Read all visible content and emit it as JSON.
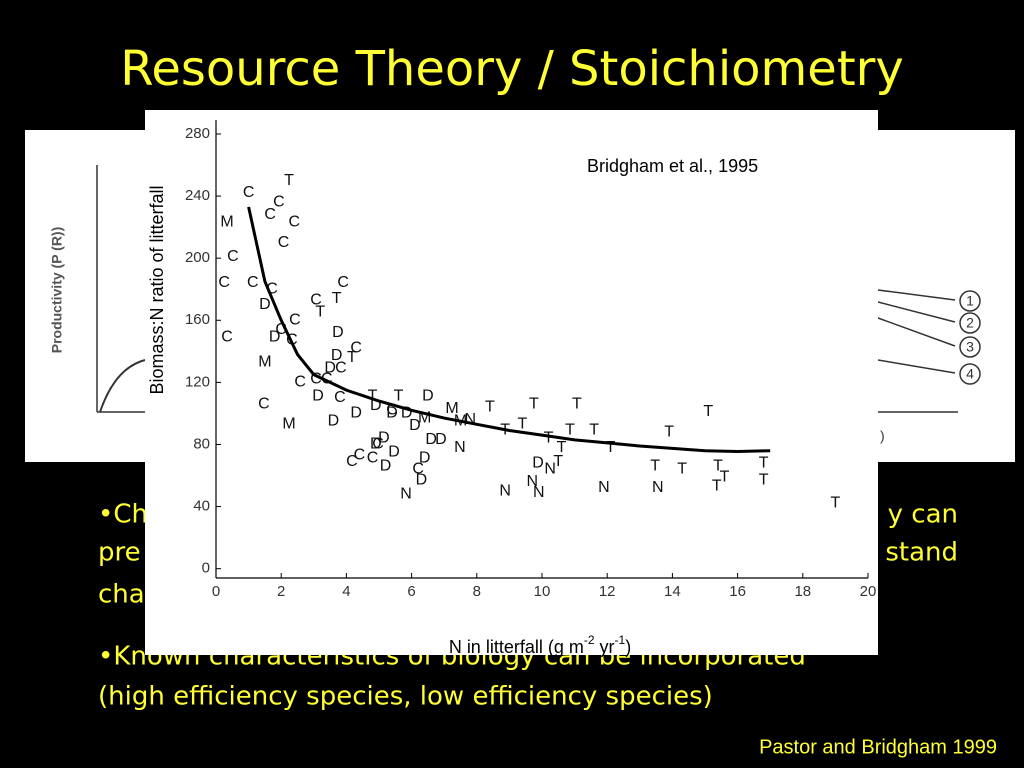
{
  "slide": {
    "title": "Resource Theory / Stoichiometry",
    "bullets": [
      {
        "lines": [
          [
            "•Ch",
            "y can"
          ],
          [
            "pre",
            "stand"
          ],
          [
            "cha"
          ]
        ]
      },
      {
        "lines": [
          [
            "•Known characteristics of biology can be incorporated"
          ],
          [
            "(high efficiency species, low efficiency species)"
          ]
        ]
      }
    ],
    "footer": "Pastor and Bridgham 1999",
    "background_figure": {
      "ylabel": "Productivity (P (R))",
      "curve_labels": [
        "1",
        "2",
        "3",
        "4"
      ],
      "axis_fragment": ")"
    }
  },
  "chart_data": {
    "type": "scatter",
    "annotation": "Bridgham et al., 1995",
    "ylabel": "Biomass:N ratio of litterfall",
    "xlabel_parts": [
      "N in litterfall (g m",
      "-2",
      " yr",
      "-1",
      ")"
    ],
    "xlim": [
      0,
      20
    ],
    "ylim": [
      -6,
      289
    ],
    "xticks": [
      0,
      2,
      4,
      6,
      8,
      10,
      12,
      14,
      16,
      18,
      20
    ],
    "yticks": [
      0,
      40,
      80,
      120,
      160,
      200,
      240,
      280
    ],
    "grid": false,
    "series": [
      {
        "name": "C",
        "color": "#000000",
        "x": [
          1.0,
          1.66,
          1.93,
          2.4,
          2.07,
          0.52,
          0.25,
          1.13,
          1.72,
          2.42,
          2.0,
          0.34,
          2.33,
          3.9,
          3.07,
          2.58,
          3.07,
          1.47,
          3.83,
          4.3,
          3.8,
          4.4,
          4.17,
          4.8,
          4.97,
          6.2,
          5.4,
          3.4
        ],
        "values": [
          242,
          228,
          236,
          223,
          210,
          201,
          184,
          184,
          180,
          160,
          154,
          149,
          147,
          184,
          173,
          120,
          122,
          106,
          129,
          142,
          110,
          73,
          69,
          71,
          80,
          64,
          102,
          122
        ]
      },
      {
        "name": "T",
        "color": "#000000",
        "x": [
          2.24,
          3.7,
          3.2,
          4.17,
          4.8,
          5.6,
          8.4,
          9.75,
          11.07,
          9.4,
          8.87,
          10.2,
          10.86,
          11.6,
          12.1,
          10.6,
          10.5,
          13.9,
          15.1,
          13.47,
          14.3,
          15.4,
          15.6,
          15.36,
          16.8,
          16.8,
          19.0
        ],
        "values": [
          250,
          174,
          165,
          136,
          111,
          111,
          104,
          106,
          106,
          93,
          89,
          84,
          89,
          89,
          78,
          78,
          69,
          88,
          101,
          66,
          64,
          66,
          59,
          53,
          68,
          57,
          42
        ]
      },
      {
        "name": "M",
        "color": "#000000",
        "x": [
          0.34,
          1.5,
          2.24,
          6.4,
          7.24,
          7.5
        ],
        "values": [
          223,
          133,
          93,
          97,
          103,
          95
        ]
      },
      {
        "name": "D",
        "color": "#000000",
        "x": [
          1.5,
          1.8,
          3.74,
          3.7,
          3.5,
          3.13,
          4.9,
          4.3,
          3.6,
          5.4,
          5.85,
          6.5,
          6.1,
          6.6,
          6.9,
          5.15,
          4.9,
          5.46,
          5.2,
          6.4,
          6.3,
          9.88
        ],
        "values": [
          170,
          149,
          152,
          137,
          129,
          111,
          105,
          100,
          95,
          100,
          100,
          111,
          92,
          83,
          83,
          84,
          80,
          75,
          66,
          71,
          57,
          68
        ]
      },
      {
        "name": "N",
        "color": "#000000",
        "x": [
          7.8,
          7.48,
          5.83,
          8.87,
          9.7,
          9.9,
          10.25,
          11.9,
          13.55
        ],
        "values": [
          96,
          78,
          48,
          50,
          56,
          49,
          64,
          52,
          52
        ]
      }
    ],
    "fit": {
      "color": "#000000",
      "x": [
        1.0,
        1.5,
        2.0,
        2.5,
        3,
        4,
        5,
        6,
        7,
        8,
        9,
        10,
        11,
        12,
        13,
        14,
        15,
        16,
        17
      ],
      "values": [
        233,
        185,
        160,
        138,
        125,
        115,
        108,
        102,
        97,
        93,
        89,
        86,
        83,
        81,
        79,
        77.5,
        76,
        75.5,
        76
      ]
    }
  }
}
